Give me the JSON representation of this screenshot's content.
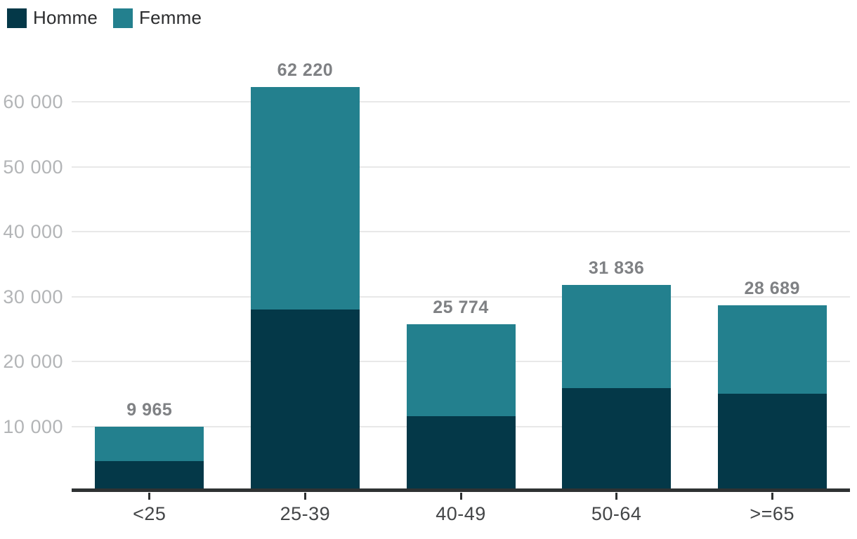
{
  "legend": {
    "items": [
      {
        "label": "Homme",
        "color": "#043848"
      },
      {
        "label": "Femme",
        "color": "#23808e"
      }
    ]
  },
  "chart_data": {
    "type": "bar",
    "stacked": true,
    "title": "",
    "categories": [
      "<25",
      "25-39",
      "40-49",
      "50-64",
      ">=65"
    ],
    "series": [
      {
        "name": "Homme",
        "color": "#043848",
        "values": [
          4650,
          28000,
          11550,
          15900,
          15000
        ]
      },
      {
        "name": "Femme",
        "color": "#23808e",
        "values": [
          5315,
          34220,
          14224,
          15936,
          13689
        ]
      }
    ],
    "totals": [
      9965,
      62220,
      25774,
      31836,
      28689
    ],
    "total_labels": [
      "9 965",
      "62 220",
      "25 774",
      "31 836",
      "28 689"
    ],
    "yticks": [
      10000,
      20000,
      30000,
      40000,
      50000,
      60000
    ],
    "ytick_labels": [
      "10 000",
      "20 000",
      "30 000",
      "40 000",
      "50 000",
      "60 000"
    ],
    "ylim": [
      0,
      65000
    ],
    "grid": "horizontal",
    "legend_position": "top-left",
    "colors": {
      "gridline": "#e8e8e8",
      "axis_line": "#2f3233",
      "ytick_text": "#b3b5b7",
      "xtick_text": "#434547",
      "value_text": "#7f8184"
    }
  }
}
